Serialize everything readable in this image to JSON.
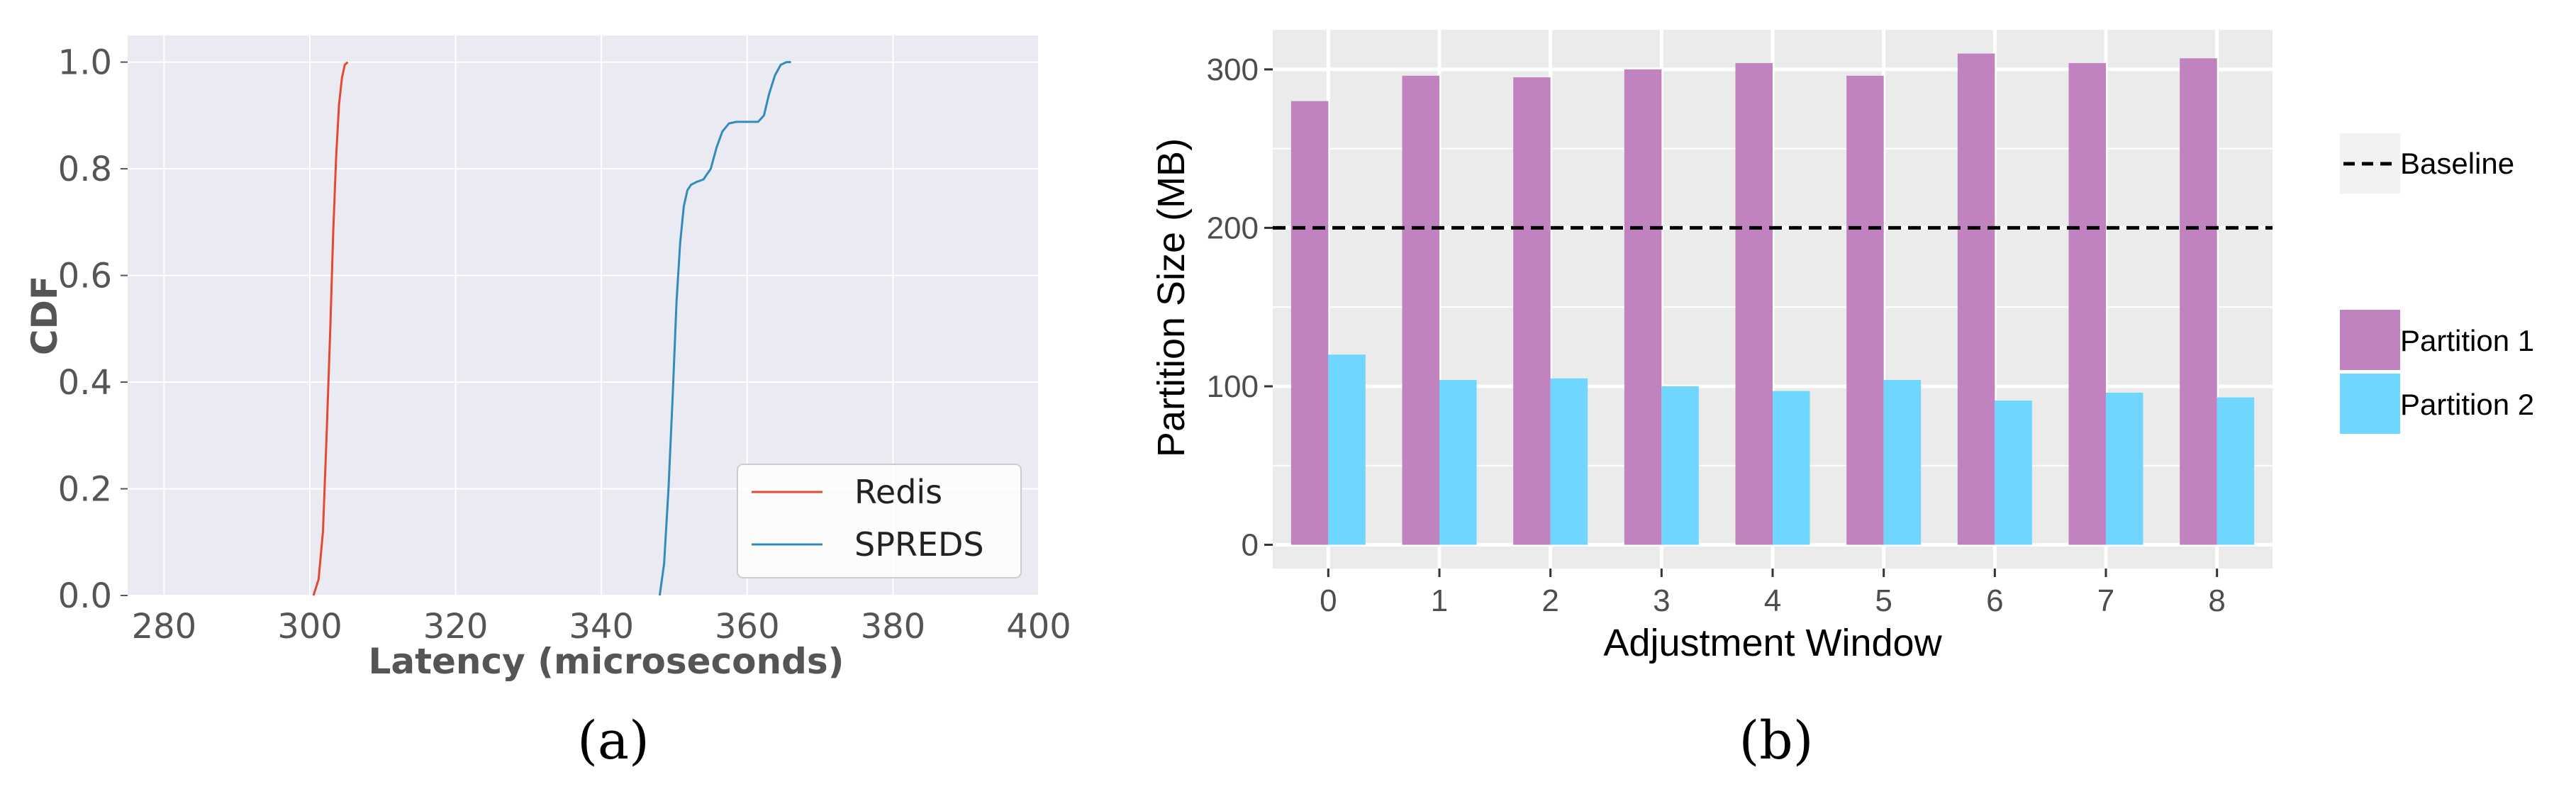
{
  "chart_data": [
    {
      "type": "line",
      "panel_caption": "(a)",
      "xlabel": "Latency (microseconds)",
      "ylabel": "CDF",
      "xlim": [
        275,
        400
      ],
      "ylim": [
        0,
        1.05
      ],
      "xticks": [
        "280",
        "300",
        "320",
        "340",
        "360",
        "380",
        "400"
      ],
      "yticks": [
        "0.0",
        "0.2",
        "0.4",
        "0.6",
        "0.8",
        "1.0"
      ],
      "grid": true,
      "legend_position": "bottom-right",
      "colors": {
        "background": "#eaeaf2",
        "grid": "#ffffff"
      },
      "series": [
        {
          "name": "Redis",
          "color": "#e24a33",
          "x": [
            300.5,
            301.2,
            301.8,
            302.3,
            302.8,
            303.2,
            303.6,
            304.0,
            304.4,
            304.8,
            305.2
          ],
          "y": [
            0.0,
            0.03,
            0.12,
            0.3,
            0.5,
            0.68,
            0.82,
            0.92,
            0.97,
            0.995,
            1.0
          ]
        },
        {
          "name": "SPREDS",
          "color": "#348abd",
          "x": [
            348.0,
            348.6,
            349.2,
            349.8,
            350.3,
            350.8,
            351.3,
            351.8,
            352.3,
            353.0,
            354.0,
            355.0,
            355.8,
            356.6,
            357.5,
            358.5,
            359.5,
            360.5,
            361.5,
            362.3,
            363.0,
            363.8,
            364.6,
            365.4,
            366.0
          ],
          "y": [
            0.0,
            0.06,
            0.2,
            0.38,
            0.55,
            0.66,
            0.73,
            0.76,
            0.77,
            0.775,
            0.78,
            0.8,
            0.84,
            0.87,
            0.885,
            0.888,
            0.888,
            0.888,
            0.888,
            0.9,
            0.94,
            0.975,
            0.995,
            1.0,
            1.0
          ]
        }
      ]
    },
    {
      "type": "bar",
      "panel_caption": "(b)",
      "xlabel": "Adjustment Window",
      "ylabel": "Partition Size (MB)",
      "ylim": [
        -15,
        325
      ],
      "yticks": [
        "0",
        "100",
        "200",
        "300"
      ],
      "categories": [
        "0",
        "1",
        "2",
        "3",
        "4",
        "5",
        "6",
        "7",
        "8"
      ],
      "grid": true,
      "legend_position": "right",
      "colors": {
        "background": "#ebebeb",
        "grid": "#ffffff"
      },
      "baseline": {
        "name": "Baseline",
        "value": 200
      },
      "series": [
        {
          "name": "Partition 1",
          "color": "#c083c0",
          "values": [
            280,
            296,
            295,
            300,
            304,
            296,
            310,
            304,
            307
          ]
        },
        {
          "name": "Partition 2",
          "color": "#6fd6ff",
          "values": [
            120,
            104,
            105,
            100,
            97,
            104,
            91,
            96,
            93
          ]
        }
      ]
    }
  ]
}
